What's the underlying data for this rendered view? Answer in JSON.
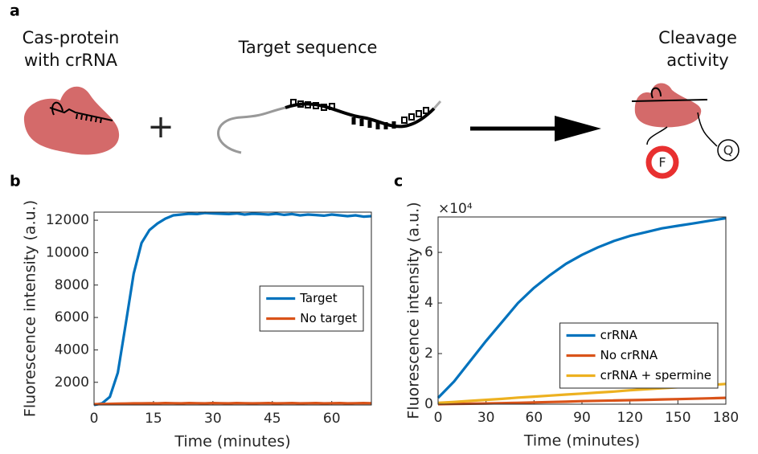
{
  "panel_labels": [
    "a",
    "b",
    "c"
  ],
  "diagram": {
    "cas_label": [
      "Cas-protein",
      "with crRNA"
    ],
    "target_label": "Target sequence",
    "cleavage_label": [
      "Cleavage",
      "activity"
    ],
    "plus": "+",
    "quencher": "Q",
    "fluorophore": "F"
  },
  "chart_data": [
    {
      "type": "line",
      "xlabel": "Time (minutes)",
      "ylabel": "Fluorescence intensity (a.u.)",
      "xlim": [
        0,
        70
      ],
      "xticks": [
        0,
        15,
        30,
        45,
        60
      ],
      "ylim": [
        600,
        12500
      ],
      "yticks": [
        2000,
        4000,
        6000,
        8000,
        10000,
        12000
      ],
      "grid": false,
      "legend": "center right",
      "x": [
        0,
        2,
        4,
        6,
        8,
        10,
        12,
        14,
        16,
        18,
        20,
        22,
        24,
        26,
        28,
        30,
        32,
        34,
        36,
        38,
        40,
        42,
        44,
        46,
        48,
        50,
        52,
        54,
        56,
        58,
        60,
        62,
        64,
        66,
        68,
        70
      ],
      "series": [
        {
          "name": "Target",
          "color": "#0072bd",
          "values": [
            600,
            700,
            1100,
            2600,
            5600,
            8700,
            10600,
            11400,
            11800,
            12100,
            12300,
            12350,
            12400,
            12380,
            12450,
            12420,
            12400,
            12380,
            12420,
            12350,
            12400,
            12380,
            12350,
            12400,
            12330,
            12380,
            12300,
            12350,
            12320,
            12280,
            12350,
            12300,
            12250,
            12300,
            12220,
            12250
          ]
        },
        {
          "name": "No target",
          "color": "#d95319",
          "values": [
            650,
            660,
            670,
            680,
            690,
            700,
            700,
            710,
            700,
            720,
            710,
            700,
            720,
            710,
            700,
            720,
            710,
            700,
            720,
            710,
            700,
            710,
            720,
            700,
            710,
            720,
            700,
            710,
            720,
            700,
            710,
            720,
            700,
            710,
            720,
            710
          ]
        }
      ]
    },
    {
      "type": "line",
      "xlabel": "Time (minutes)",
      "ylabel": "Fluorescence intensity (a.u.)",
      "y_multiplier": "×10⁴",
      "xlim": [
        0,
        180
      ],
      "xticks": [
        0,
        30,
        60,
        90,
        120,
        150,
        180
      ],
      "ylim": [
        0,
        74000
      ],
      "yticks": [
        {
          "value": 0,
          "label": "0"
        },
        {
          "value": 20000,
          "label": "2"
        },
        {
          "value": 40000,
          "label": "4"
        },
        {
          "value": 60000,
          "label": "6"
        }
      ],
      "grid": false,
      "legend": "lower right",
      "x": [
        0,
        10,
        20,
        30,
        40,
        50,
        60,
        70,
        80,
        90,
        100,
        110,
        120,
        130,
        140,
        150,
        160,
        170,
        180
      ],
      "series": [
        {
          "name": "crRNA",
          "color": "#0072bd",
          "values": [
            2500,
            9000,
            17000,
            25000,
            32500,
            40000,
            46000,
            51000,
            55500,
            59000,
            62000,
            64500,
            66500,
            68000,
            69500,
            70500,
            71500,
            72500,
            73500
          ]
        },
        {
          "name": "No crRNA",
          "color": "#d95319",
          "values": [
            0,
            100,
            200,
            300,
            420,
            550,
            700,
            850,
            1000,
            1200,
            1330,
            1460,
            1600,
            1730,
            1860,
            2000,
            2170,
            2330,
            2500
          ]
        },
        {
          "name": "crRNA + spermine",
          "color": "#edb120",
          "values": [
            500,
            900,
            1300,
            1700,
            2100,
            2600,
            3000,
            3400,
            3800,
            4200,
            4600,
            5000,
            5500,
            5900,
            6300,
            6700,
            7100,
            7600,
            8000
          ]
        }
      ]
    }
  ]
}
